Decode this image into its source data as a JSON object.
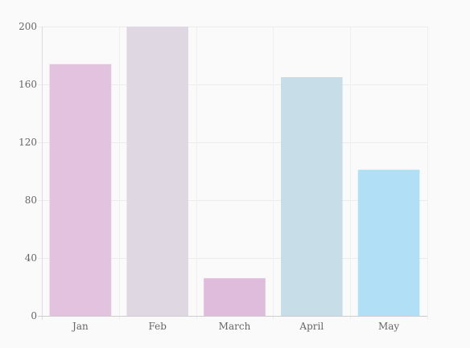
{
  "chart_data": {
    "type": "bar",
    "categories": [
      "Jan",
      "Feb",
      "March",
      "April",
      "May"
    ],
    "values": [
      174,
      200,
      26,
      165,
      101
    ],
    "colors": [
      "#e3c2df",
      "#dfd8e3",
      "#dfbcdb",
      "#c7dde8",
      "#b1e0f6"
    ],
    "ylim": [
      0,
      200
    ],
    "yticks": [
      0,
      40,
      80,
      120,
      160,
      200
    ],
    "grid": true,
    "legend": false
  }
}
